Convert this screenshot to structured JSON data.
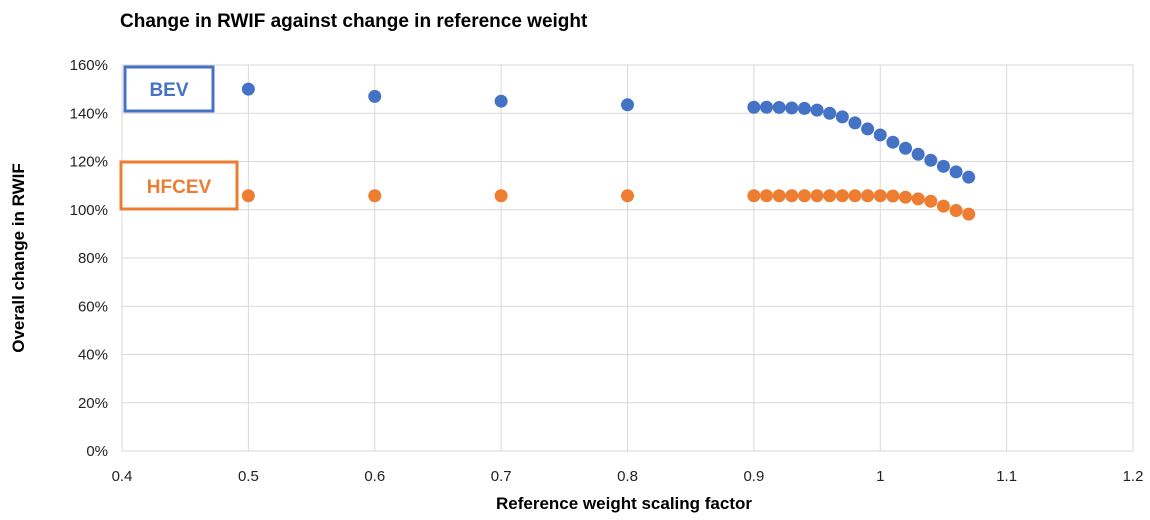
{
  "chart_data": {
    "type": "scatter",
    "title": "Change in RWIF against change in reference weight",
    "xlabel": "Reference weight scaling factor",
    "ylabel": "Overall change in RWIF",
    "xlim": [
      0.4,
      1.2
    ],
    "ylim": [
      0,
      1.6
    ],
    "x_ticks": [
      "0.4",
      "0.5",
      "0.6",
      "0.7",
      "0.8",
      "0.9",
      "1",
      "1.1",
      "1.2"
    ],
    "y_ticks": [
      "0%",
      "20%",
      "40%",
      "60%",
      "80%",
      "100%",
      "120%",
      "140%",
      "160%"
    ],
    "grid": true,
    "legend_placement": "left",
    "series": [
      {
        "name": "BEV",
        "color": "#4472c4",
        "x": [
          0.5,
          0.6,
          0.7,
          0.8,
          0.9,
          0.91,
          0.92,
          0.93,
          0.94,
          0.95,
          0.96,
          0.97,
          0.98,
          0.99,
          1.0,
          1.01,
          1.02,
          1.03,
          1.04,
          1.05,
          1.06,
          1.07
        ],
        "y": [
          1.5,
          1.47,
          1.45,
          1.435,
          1.425,
          1.425,
          1.424,
          1.422,
          1.42,
          1.413,
          1.4,
          1.385,
          1.36,
          1.335,
          1.31,
          1.28,
          1.255,
          1.23,
          1.205,
          1.18,
          1.157,
          1.135
        ]
      },
      {
        "name": "HFCEV",
        "color": "#ed7d31",
        "x": [
          0.5,
          0.6,
          0.7,
          0.8,
          0.9,
          0.91,
          0.92,
          0.93,
          0.94,
          0.95,
          0.96,
          0.97,
          0.98,
          0.99,
          1.0,
          1.01,
          1.02,
          1.03,
          1.04,
          1.05,
          1.06,
          1.07
        ],
        "y": [
          1.058,
          1.058,
          1.058,
          1.058,
          1.058,
          1.058,
          1.058,
          1.058,
          1.058,
          1.058,
          1.058,
          1.058,
          1.058,
          1.058,
          1.058,
          1.057,
          1.052,
          1.045,
          1.035,
          1.015,
          0.997,
          0.982
        ]
      }
    ]
  }
}
